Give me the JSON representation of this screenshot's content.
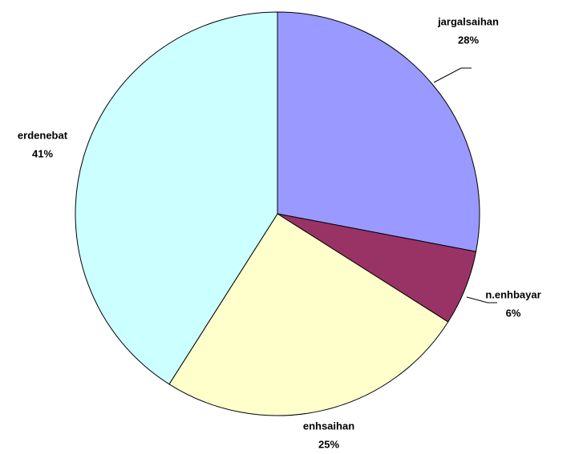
{
  "chart_data": {
    "type": "pie",
    "categories": [
      "jargalsaihan",
      "n.enhbayar",
      "enhsaihan",
      "erdenebat"
    ],
    "values": [
      28,
      6,
      25,
      41
    ],
    "value_labels": [
      "28%",
      "6%",
      "25%",
      "41%"
    ],
    "colors": [
      "#9999ff",
      "#993366",
      "#ffffcc",
      "#ccffff"
    ]
  }
}
